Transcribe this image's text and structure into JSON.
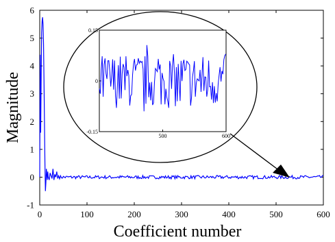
{
  "chart_data": [
    {
      "type": "line",
      "xlabel": "Coefficient number",
      "ylabel": "Magnitude",
      "xlim": [
        0,
        600
      ],
      "ylim": [
        -1,
        6
      ],
      "xticks": [
        "0",
        "100",
        "200",
        "300",
        "400",
        "500",
        "600"
      ],
      "yticks": [
        "-1",
        "0",
        "1",
        "2",
        "3",
        "4",
        "5",
        "6"
      ],
      "grid": false,
      "color": "#0000ff",
      "series": [
        {
          "x": [
            0,
            1,
            2,
            3,
            4,
            5,
            6,
            7,
            8,
            9,
            10,
            11,
            12,
            13,
            14,
            15,
            16,
            17,
            18,
            20,
            22,
            24,
            26,
            28,
            30,
            32,
            34,
            36,
            38,
            40
          ],
          "y": [
            0,
            4.4,
            1.6,
            3.5,
            5.2,
            5.6,
            5.75,
            5.5,
            4.8,
            3.5,
            2.0,
            0.5,
            -0.5,
            -0.2,
            0.3,
            0.1,
            -0.1,
            0.2,
            0.0,
            -0.1,
            0.15,
            0.05,
            -0.05,
            0.3,
            -0.1,
            0.1,
            0.0,
            0.2,
            -0.05,
            0.05
          ]
        }
      ],
      "tail_noise": {
        "x_start": 40,
        "x_end": 600,
        "amplitude": 0.06
      },
      "annotations": [
        {
          "type": "ellipse-zoom",
          "target_x": 525,
          "target_y": 0
        }
      ]
    },
    {
      "type": "line",
      "role": "inset",
      "xlim": [
        400,
        600
      ],
      "ylim": [
        -0.15,
        0.15
      ],
      "xticks": [
        "500",
        "600"
      ],
      "yticks": [
        "0.15",
        "0",
        "-0.15"
      ],
      "amplitude": 0.08,
      "color": "#0000ff"
    }
  ]
}
